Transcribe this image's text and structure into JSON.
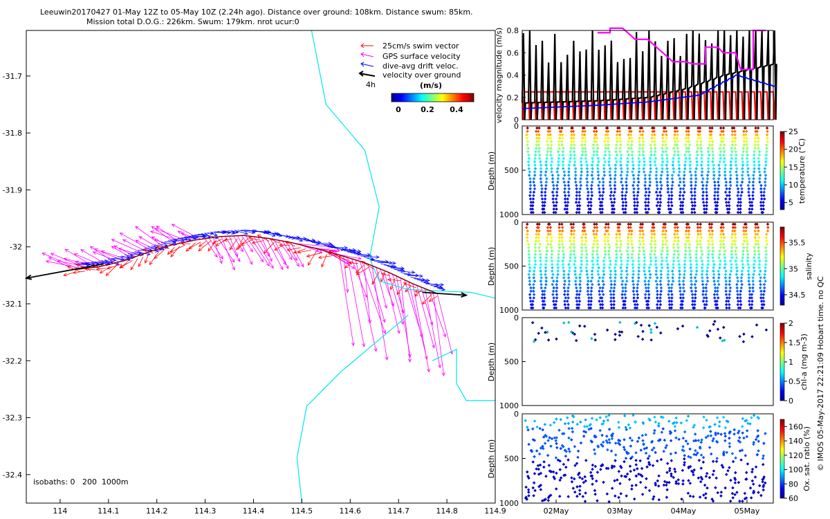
{
  "header": {
    "line1": "Leeuwin20170427 01-May 12Z to 05-May 10Z (2.24h ago). Distance over ground: 108km. Distance swum: 85km.",
    "line2": "Mission total D.O.G.: 226km. Swum: 179km. nrot ucur:0"
  },
  "footer": {
    "watermark": "© IMOS 05-May-2017 22:21:09 Hobart time. no QC",
    "isobaths": "isobaths: 0   200  1000m"
  },
  "colors": {
    "swim": "#ff0000",
    "gps": "#ff00ff",
    "drift": "#0000ff",
    "ground": "#000000",
    "coast": "#00e5ee"
  },
  "chart_data": [
    {
      "id": "map",
      "type": "scatter",
      "xlim": [
        113.93,
        114.9
      ],
      "ylim": [
        -32.45,
        -31.62
      ],
      "x_ticks": [
        "114",
        "114.1",
        "114.2",
        "114.3",
        "114.4",
        "114.5",
        "114.6",
        "114.7",
        "114.8",
        "114.9"
      ],
      "y_ticks": [
        "-31.7",
        "-31.8",
        "-31.9",
        "-32",
        "-32.1",
        "-32.2",
        "-32.3",
        "-32.4"
      ],
      "legend": [
        {
          "label": "25cm/s swim vector",
          "color": "#ff0000"
        },
        {
          "label": "GPS surface velocity",
          "color": "#ff00ff"
        },
        {
          "label": "dive-avg drift veloc.",
          "color": "#0000ff"
        },
        {
          "label": "velocity over ground",
          "color": "#000000"
        }
      ],
      "legend_note": "4h",
      "colorbar": {
        "label": "(m/s)",
        "ticks": [
          "0",
          "0.2",
          "0.4"
        ]
      },
      "track": [
        [
          114.03,
          -32.04
        ],
        [
          114.08,
          -32.035
        ],
        [
          114.13,
          -32.025
        ],
        [
          114.18,
          -32.01
        ],
        [
          114.23,
          -31.997
        ],
        [
          114.28,
          -31.988
        ],
        [
          114.33,
          -31.982
        ],
        [
          114.38,
          -31.98
        ],
        [
          114.43,
          -31.985
        ],
        [
          114.48,
          -31.993
        ],
        [
          114.53,
          -32.003
        ],
        [
          114.58,
          -32.015
        ],
        [
          114.63,
          -32.028
        ],
        [
          114.68,
          -32.045
        ],
        [
          114.73,
          -32.065
        ],
        [
          114.78,
          -32.082
        ]
      ],
      "ground_vectors": [
        {
          "from": [
            114.09,
            -32.03
          ],
          "to": [
            113.93,
            -32.055
          ]
        },
        {
          "from": [
            114.75,
            -32.08
          ],
          "to": [
            114.84,
            -32.085
          ]
        }
      ],
      "coastline": [
        [
          114.52,
          -31.62
        ],
        [
          114.55,
          -31.75
        ],
        [
          114.63,
          -31.83
        ],
        [
          114.66,
          -31.93
        ],
        [
          114.64,
          -32.02
        ],
        [
          114.66,
          -32.06
        ],
        [
          114.72,
          -32.075
        ],
        [
          114.85,
          -32.08
        ],
        [
          114.9,
          -32.09
        ]
      ],
      "isobath": [
        [
          114.5,
          -32.45
        ],
        [
          114.49,
          -32.37
        ],
        [
          114.51,
          -32.28
        ],
        [
          114.58,
          -32.22
        ],
        [
          114.65,
          -32.17
        ],
        [
          114.72,
          -32.12
        ]
      ],
      "gps_bay": [
        [
          114.77,
          -32.2
        ],
        [
          114.82,
          -32.18
        ],
        [
          114.82,
          -32.24
        ],
        [
          114.84,
          -32.27
        ],
        [
          114.9,
          -32.27
        ]
      ]
    },
    {
      "id": "velocity",
      "type": "line",
      "ylabel": "velocity magnitude (m/s)",
      "ylim": [
        0,
        0.8
      ],
      "y_ticks": [
        "0",
        "0.2",
        "0.4",
        "0.6",
        "0.8"
      ],
      "series": [
        {
          "color": "#ff0000",
          "baseline": 0.25
        },
        {
          "color": "#000000",
          "trend": [
            [
              0,
              0.15
            ],
            [
              0.3,
              0.17
            ],
            [
              0.5,
              0.2
            ],
            [
              0.65,
              0.28
            ],
            [
              0.8,
              0.4
            ],
            [
              1,
              0.5
            ]
          ]
        },
        {
          "color": "#0000ff",
          "trend": [
            [
              0,
              0.1
            ],
            [
              0.3,
              0.13
            ],
            [
              0.5,
              0.16
            ],
            [
              0.7,
              0.22
            ],
            [
              0.85,
              0.4
            ],
            [
              1,
              0.3
            ]
          ]
        },
        {
          "color": "#ff00ff",
          "trend": [
            [
              0.3,
              0.78
            ],
            [
              0.35,
              0.82
            ],
            [
              0.45,
              0.72
            ],
            [
              0.6,
              0.52
            ],
            [
              0.68,
              0.5
            ],
            [
              0.73,
              0.65
            ],
            [
              0.8,
              0.6
            ],
            [
              0.87,
              0.45
            ],
            [
              0.92,
              0.8
            ]
          ]
        }
      ]
    },
    {
      "id": "temperature",
      "type": "scatter",
      "ylabel": "Depth (m)",
      "clabel": "temperature (°C)",
      "y_ticks": [
        "0",
        "500",
        "1000"
      ],
      "c_ticks": [
        "25",
        "20",
        "15",
        "10",
        "5"
      ],
      "crange": [
        3,
        25
      ],
      "profiles": 42
    },
    {
      "id": "salinity",
      "type": "scatter",
      "ylabel": "Depth (m)",
      "clabel": "salinity",
      "y_ticks": [
        "0",
        "500",
        "1000"
      ],
      "c_ticks": [
        "35.5",
        "35",
        "34.5"
      ],
      "crange": [
        34.3,
        35.8
      ],
      "profiles": 42
    },
    {
      "id": "chla",
      "type": "scatter",
      "ylabel": "Depth (m)",
      "clabel": "chl-a (mg m-3)",
      "y_ticks": [
        "0",
        "500",
        "1000"
      ],
      "c_ticks": [
        "2",
        "1.5",
        "1",
        "0.5",
        "0"
      ],
      "crange": [
        0,
        2
      ]
    },
    {
      "id": "oxygen",
      "type": "scatter",
      "ylabel": "Depth (m)",
      "clabel": "Ox. sat. ratio (%)",
      "y_ticks": [
        "0",
        "500",
        "1000"
      ],
      "c_ticks": [
        "160",
        "140",
        "120",
        "100",
        "80",
        "60"
      ],
      "crange": [
        60,
        170
      ],
      "x_ticks": [
        "02May",
        "03May",
        "04May",
        "05May"
      ]
    }
  ]
}
